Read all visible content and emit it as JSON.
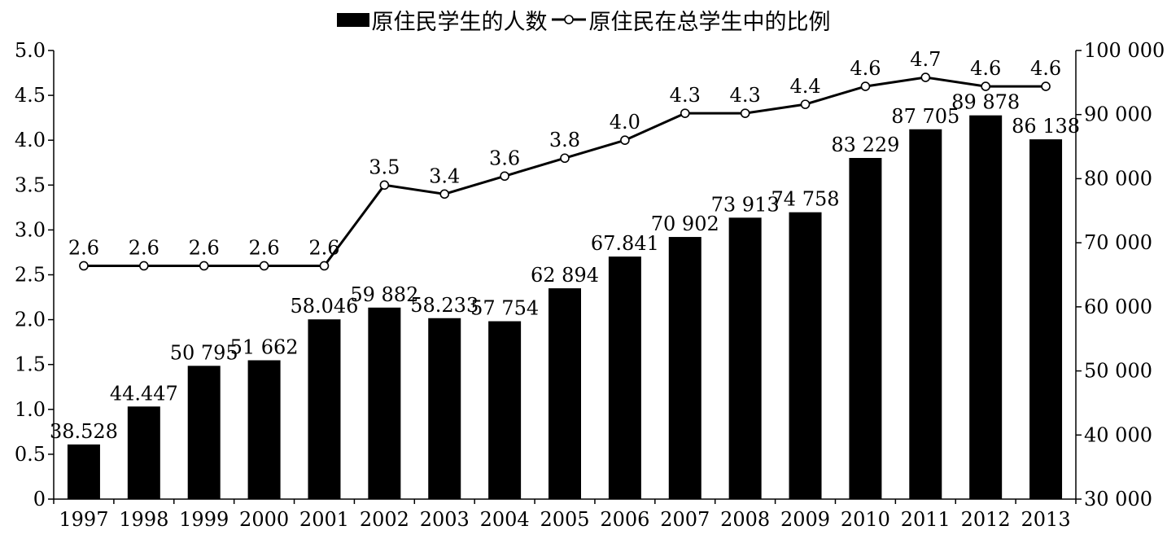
{
  "chart_data": {
    "type": "bar",
    "title": "",
    "categories": [
      "1997",
      "1998",
      "1999",
      "2000",
      "2001",
      "2002",
      "2003",
      "2004",
      "2005",
      "2006",
      "2007",
      "2008",
      "2009",
      "2010",
      "2011",
      "2012",
      "2013"
    ],
    "series": [
      {
        "name": "原住民学生的人数",
        "type": "bar",
        "axis": "right",
        "values": [
          38528,
          44447,
          50795,
          51662,
          58046,
          59882,
          58233,
          57754,
          62894,
          67841,
          70902,
          73913,
          74758,
          83229,
          87705,
          89878,
          86138
        ],
        "labels": [
          "38.528",
          "44.447",
          "50 795",
          "51 662",
          "58.046",
          "59 882",
          "58.233",
          "57 754",
          "62 894",
          "67.841",
          "70 902",
          "73 913",
          "74 758",
          "83 229",
          "87 705",
          "89 878",
          "86 138"
        ]
      },
      {
        "name": "原住民在总学生中的比例",
        "type": "line",
        "axis": "left",
        "marker": "open-circle",
        "values": [
          2.6,
          2.6,
          2.6,
          2.6,
          2.6,
          3.5,
          3.4,
          3.6,
          3.8,
          4.0,
          4.3,
          4.3,
          4.4,
          4.6,
          4.7,
          4.6,
          4.6
        ],
        "labels": [
          "2.6",
          "2.6",
          "2.6",
          "2.6",
          "2.6",
          "3.5",
          "3.4",
          "3.6",
          "3.8",
          "4.0",
          "4.3",
          "4.3",
          "4.4",
          "4.6",
          "4.7",
          "4.6",
          "4.6"
        ]
      }
    ],
    "y_left": {
      "ylim": [
        0,
        5.0
      ],
      "ticks": [
        0,
        0.5,
        1.0,
        1.5,
        2.0,
        2.5,
        3.0,
        3.5,
        4.0,
        4.5,
        5.0
      ],
      "tick_labels": [
        "0",
        "0.5",
        "1.0",
        "1.5",
        "2.0",
        "2.5",
        "3.0",
        "3.5",
        "4.0",
        "4.5",
        "5.0"
      ]
    },
    "y_right": {
      "ylim": [
        30000,
        100000
      ],
      "ticks": [
        30000,
        40000,
        50000,
        60000,
        70000,
        80000,
        90000,
        100000
      ],
      "tick_labels": [
        "30 000",
        "40 000",
        "50 000",
        "60 000",
        "70 000",
        "80 000",
        "90 000",
        "100 000"
      ]
    },
    "xlabel": "",
    "ylabel": "",
    "grid": false,
    "legend": "top-center",
    "colors": {
      "bar": "#000000",
      "line": "#000000",
      "marker_fill": "#ffffff"
    }
  }
}
